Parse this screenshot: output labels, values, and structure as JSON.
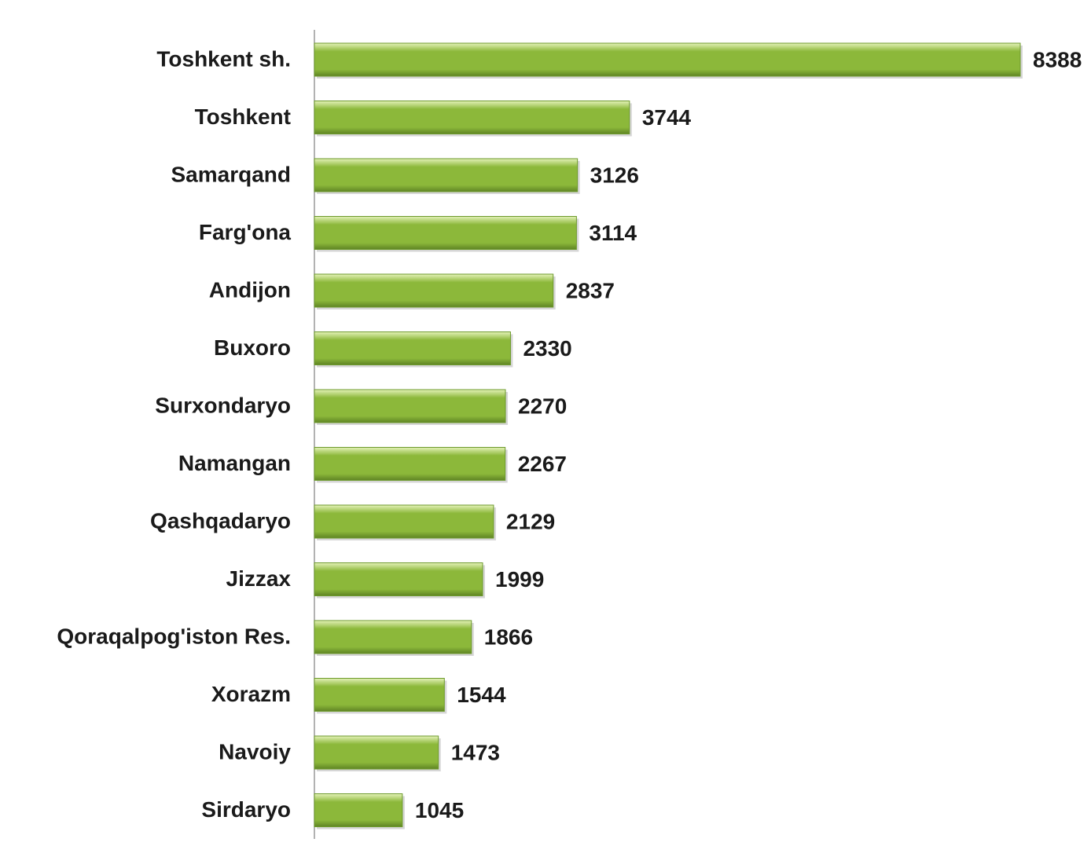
{
  "chart_data": {
    "type": "bar",
    "orientation": "horizontal",
    "categories": [
      "Toshkent sh.",
      "Toshkent",
      "Samarqand",
      "Farg'ona",
      "Andijon",
      "Buxoro",
      "Surxondaryo",
      "Namangan",
      "Qashqadaryo",
      "Jizzax",
      "Qoraqalpog'iston Res.",
      "Xorazm",
      "Navoiy",
      "Sirdaryo"
    ],
    "values": [
      8388,
      3744,
      3126,
      3114,
      2837,
      2330,
      2270,
      2267,
      2129,
      1999,
      1866,
      1544,
      1473,
      1045
    ],
    "color": "#8cb83a"
  }
}
